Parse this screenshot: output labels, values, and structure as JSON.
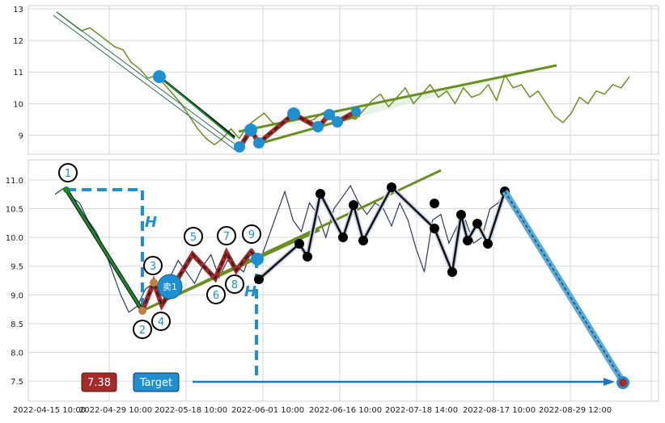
{
  "chart_data": [
    {
      "type": "line",
      "panel": "top",
      "ylim": [
        8.4,
        13.1
      ],
      "yticks": [
        9,
        10,
        11,
        12,
        13
      ],
      "grid": true,
      "series": [
        {
          "name": "",
          "color": "#6b8e23",
          "x": [
            0,
            2,
            4,
            6,
            8,
            10,
            12,
            14,
            16,
            18,
            20,
            22,
            24,
            26,
            28,
            30,
            32,
            34,
            36,
            38,
            40,
            42,
            44,
            46,
            48,
            50,
            52,
            54,
            56,
            58,
            60,
            62,
            64,
            66,
            68,
            70,
            72,
            74,
            76,
            78,
            80,
            82,
            84,
            86,
            88,
            90,
            92,
            94,
            96,
            98,
            100,
            102,
            104,
            106,
            108,
            110,
            112,
            114,
            116,
            118,
            120,
            122,
            124,
            126,
            128,
            130,
            132,
            134,
            136,
            138
          ],
          "y": [
            12.9,
            12.7,
            12.5,
            12.3,
            12.4,
            12.2,
            12.0,
            11.8,
            11.7,
            11.3,
            11.1,
            10.8,
            10.9,
            10.6,
            10.3,
            10.0,
            9.6,
            9.2,
            8.9,
            8.7,
            8.9,
            9.2,
            8.9,
            9.3,
            9.5,
            9.7,
            9.4,
            9.3,
            9.6,
            9.7,
            9.4,
            9.5,
            9.7,
            9.8,
            9.3,
            9.6,
            9.5,
            9.8,
            10.1,
            10.3,
            9.9,
            10.2,
            10.5,
            10.0,
            10.3,
            10.6,
            10.2,
            10.4,
            10.0,
            10.5,
            10.2,
            10.3,
            10.6,
            10.1,
            10.9,
            10.5,
            10.6,
            10.2,
            10.4,
            10.0,
            9.6,
            9.4,
            9.7,
            10.2,
            10.0,
            10.4,
            10.3,
            10.6,
            10.5,
            10.85
          ]
        }
      ]
    },
    {
      "type": "line",
      "panel": "bottom",
      "ylim": [
        7.15,
        11.35
      ],
      "yticks": [
        7.5,
        8.0,
        8.5,
        9.0,
        9.5,
        10.0,
        10.5,
        11.0
      ],
      "xticklabels": [
        "2022-04-15 10:00",
        "2022-04-29 10:00",
        "2022-05-18 10:00",
        "2022-06-01 10:00",
        "2022-06-16 10:00",
        "2022-07-18 14:00",
        "2022-08-17 10:00",
        "2022-08-29 12:00"
      ],
      "grid": true,
      "series": [
        {
          "name": "",
          "color": "#2b3a55",
          "x": [
            0,
            2,
            4,
            6,
            8,
            10,
            12,
            14,
            16,
            18,
            20,
            22,
            24,
            26,
            28,
            30,
            32,
            34,
            36,
            38,
            40,
            42,
            44,
            46,
            48,
            50,
            52,
            54,
            56,
            58,
            60,
            62,
            64,
            66,
            68,
            70,
            72,
            74,
            76,
            78,
            80,
            82,
            84,
            86,
            88,
            90,
            92,
            94,
            96,
            98,
            100,
            102,
            104,
            106,
            108,
            110
          ],
          "y": [
            10.75,
            10.85,
            10.7,
            10.6,
            10.3,
            10.1,
            9.8,
            9.4,
            9.0,
            8.7,
            8.8,
            9.1,
            9.2,
            9.0,
            9.3,
            9.6,
            9.4,
            9.2,
            9.5,
            9.7,
            9.3,
            9.6,
            9.5,
            9.4,
            9.8,
            9.6,
            10.0,
            10.4,
            10.8,
            10.3,
            10.1,
            10.6,
            10.4,
            10.0,
            10.5,
            10.7,
            10.9,
            10.6,
            10.4,
            10.6,
            10.5,
            10.2,
            10.6,
            10.3,
            9.8,
            9.4,
            10.3,
            10.4,
            9.9,
            10.2,
            10.3,
            9.9,
            10.0,
            10.5,
            10.6,
            10.85
          ]
        }
      ],
      "annotations": {
        "stroke_labels": [
          "1",
          "2",
          "3",
          "4",
          "5",
          "6",
          "7",
          "8",
          "9"
        ],
        "sell_marker": "卖1",
        "h_marker": "H",
        "target_price": "7.38",
        "target_label": "Target"
      }
    }
  ],
  "colors": {
    "price_top": "#6b8e23",
    "price_bottom": "#2b3a55",
    "zigzag_red": "#a52a2a",
    "trend_green": "#6b8e23",
    "down_leg": "#1a8a2e",
    "node_blue": "#1e90d0",
    "node_black": "#000000",
    "grid": "#cccccc",
    "target_box": "#a52a2a",
    "target_label_box": "#1e90d0",
    "arrow_blue": "#1e78b4",
    "wedge_fill": "#d8ecd6"
  }
}
